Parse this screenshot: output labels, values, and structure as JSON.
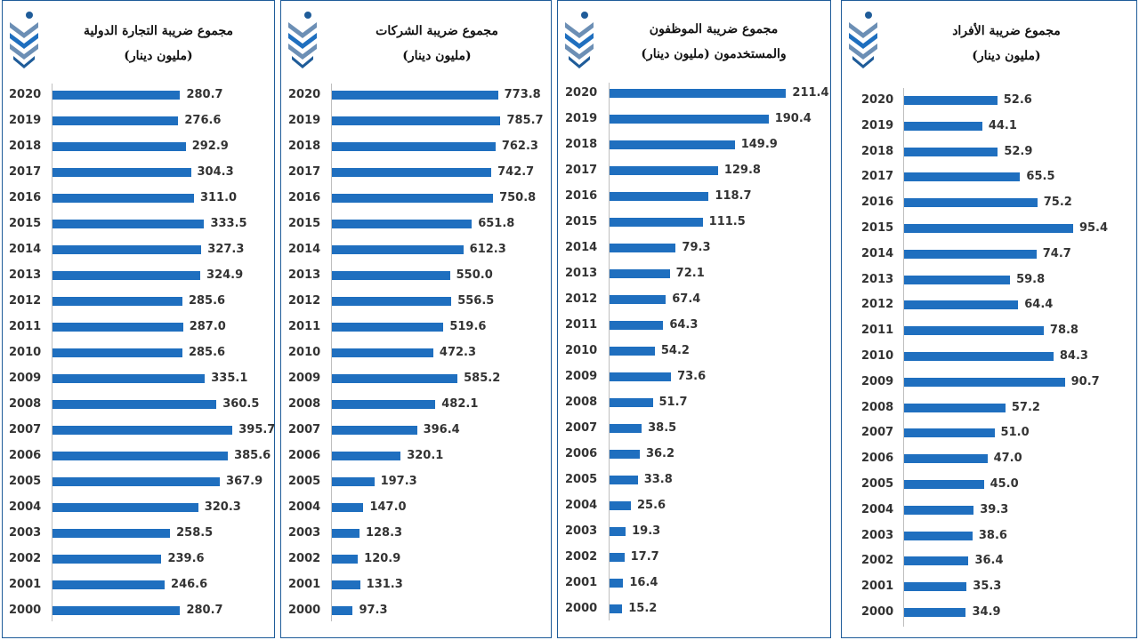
{
  "colors": {
    "bar": "#1f6fbf",
    "border": "#1f5c99",
    "text": "#333333"
  },
  "logo_icon": "crown-chevron-logo",
  "chart_data": [
    {
      "type": "bar",
      "orientation": "horizontal",
      "title": "مجموع ضريبة التجارة الدولية",
      "subtitle": "(مليون دينار)",
      "categories": [
        "2020",
        "2019",
        "2018",
        "2017",
        "2016",
        "2015",
        "2014",
        "2013",
        "2012",
        "2011",
        "2010",
        "2009",
        "2008",
        "2007",
        "2006",
        "2005",
        "2004",
        "2003",
        "2002",
        "2001",
        "2000"
      ],
      "values": [
        280.7,
        276.6,
        292.9,
        304.3,
        311.0,
        333.5,
        327.3,
        324.9,
        285.6,
        287.0,
        285.6,
        335.1,
        360.5,
        395.7,
        385.6,
        367.9,
        320.3,
        258.5,
        239.6,
        246.6,
        280.7
      ],
      "labels": [
        "280.7",
        "276.6",
        "292.9",
        "304.3",
        "311.0",
        "333.5",
        "327.3",
        "324.9",
        "285.6",
        "287.0",
        "285.6",
        "335.1",
        "360.5",
        "395.7",
        "385.6",
        "367.9",
        "320.3",
        "258.5",
        "239.6",
        "246.6",
        "280.7"
      ],
      "xlim": [
        0,
        450
      ]
    },
    {
      "type": "bar",
      "orientation": "horizontal",
      "title": "مجموع ضريبة الشركات",
      "subtitle": "(مليون دينار)",
      "categories": [
        "2020",
        "2019",
        "2018",
        "2017",
        "2016",
        "2015",
        "2014",
        "2013",
        "2012",
        "2011",
        "2010",
        "2009",
        "2008",
        "2007",
        "2006",
        "2005",
        "2004",
        "2003",
        "2002",
        "2001",
        "2000"
      ],
      "values": [
        773.8,
        785.7,
        762.3,
        742.7,
        750.8,
        651.8,
        612.3,
        550.0,
        556.5,
        519.6,
        472.3,
        585.2,
        482.1,
        396.4,
        320.1,
        197.3,
        147.0,
        128.3,
        120.9,
        131.3,
        97.3
      ],
      "labels": [
        "773.8",
        "785.7",
        "762.3",
        "742.7",
        "750.8",
        "651.8",
        "612.3",
        "550.0",
        "556.5",
        "519.6",
        "472.3",
        "585.2",
        "482.1",
        "396.4",
        "320.1",
        "197.3",
        "147.0",
        "128.3",
        "120.9",
        "131.3",
        "97.3"
      ],
      "xlim": [
        0,
        850
      ]
    },
    {
      "type": "bar",
      "orientation": "horizontal",
      "title": "مجموع ضريبة الموظفون",
      "subtitle": "والمستخدمون (مليون دينار)",
      "categories": [
        "2020",
        "2019",
        "2018",
        "2017",
        "2016",
        "2015",
        "2014",
        "2013",
        "2012",
        "2011",
        "2010",
        "2009",
        "2008",
        "2007",
        "2006",
        "2005",
        "2004",
        "2003",
        "2002",
        "2001",
        "2000"
      ],
      "values": [
        211.4,
        190.4,
        149.9,
        129.8,
        118.7,
        111.5,
        79.3,
        72.1,
        67.4,
        64.3,
        54.2,
        73.6,
        51.7,
        38.5,
        36.2,
        33.8,
        25.6,
        19.3,
        17.7,
        16.4,
        15.2
      ],
      "labels": [
        "211.4",
        "190.4",
        "149.9",
        "129.8",
        "118.7",
        "111.5",
        "79.3",
        "72.1",
        "67.4",
        "64.3",
        "54.2",
        "73.6",
        "51.7",
        "38.5",
        "36.2",
        "33.8",
        "25.6",
        "19.3",
        "17.7",
        "16.4",
        "15.2"
      ],
      "xlim": [
        0,
        212
      ]
    },
    {
      "type": "bar",
      "orientation": "horizontal",
      "title": "مجموع ضريبة الأفراد",
      "subtitle": "(مليون دينار)",
      "categories": [
        "2020",
        "2019",
        "2018",
        "2017",
        "2016",
        "2015",
        "2014",
        "2013",
        "2012",
        "2011",
        "2010",
        "2009",
        "2008",
        "2007",
        "2006",
        "2005",
        "2004",
        "2003",
        "2002",
        "2001",
        "2000"
      ],
      "values": [
        52.6,
        44.1,
        52.9,
        65.5,
        75.2,
        95.4,
        74.7,
        59.8,
        64.4,
        78.8,
        84.3,
        90.7,
        57.2,
        51.0,
        47.0,
        45.0,
        39.3,
        38.6,
        36.4,
        35.3,
        34.9
      ],
      "labels": [
        "52.6",
        "44.1",
        "52.9",
        "65.5",
        "75.2",
        "95.4",
        "74.7",
        "59.8",
        "64.4",
        "78.8",
        "84.3",
        "90.7",
        "57.2",
        "51.0",
        "47.0",
        "45.0",
        "39.3",
        "38.6",
        "36.4",
        "35.3",
        "34.9"
      ],
      "xlim": [
        0,
        115
      ]
    }
  ]
}
